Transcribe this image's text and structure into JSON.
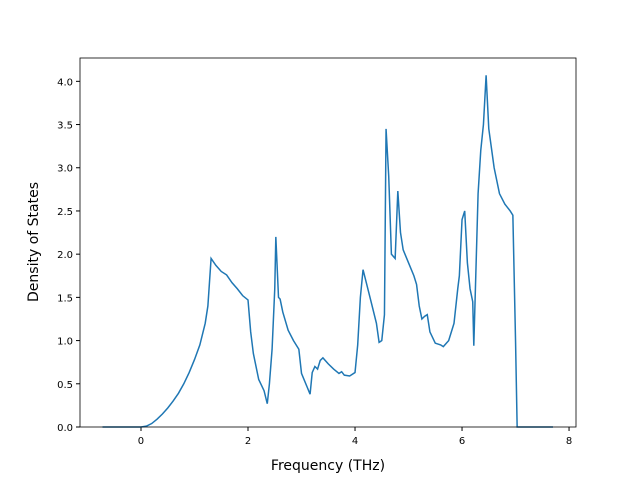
{
  "chart_data": {
    "type": "line",
    "xlabel": "Frequency (THz)",
    "ylabel": "Density of States",
    "xlim": [
      -1.14,
      8.13
    ],
    "ylim": [
      0,
      4.27
    ],
    "xticks": [
      0,
      2,
      4,
      6,
      8
    ],
    "yticks": [
      {
        "value": 0,
        "label": "0.0"
      },
      {
        "value": 0.5,
        "label": "0.5"
      },
      {
        "value": 1,
        "label": "1.0"
      },
      {
        "value": 1.5,
        "label": "1.5"
      },
      {
        "value": 2,
        "label": "2.0"
      },
      {
        "value": 2.5,
        "label": "2.5"
      },
      {
        "value": 3,
        "label": "3.0"
      },
      {
        "value": 3.5,
        "label": "3.5"
      },
      {
        "value": 4,
        "label": "4.0"
      }
    ],
    "color": "#1f77b4",
    "x": [
      -0.72,
      0,
      0.1,
      0.2,
      0.3,
      0.4,
      0.5,
      0.6,
      0.7,
      0.8,
      0.9,
      1.0,
      1.1,
      1.2,
      1.25,
      1.31,
      1.4,
      1.5,
      1.6,
      1.7,
      1.8,
      1.9,
      2.0,
      2.05,
      2.1,
      2.2,
      2.3,
      2.36,
      2.4,
      2.45,
      2.5,
      2.52,
      2.57,
      2.6,
      2.65,
      2.75,
      2.85,
      2.95,
      3.0,
      3.1,
      3.16,
      3.2,
      3.25,
      3.3,
      3.35,
      3.4,
      3.5,
      3.6,
      3.7,
      3.75,
      3.8,
      3.9,
      4.0,
      4.05,
      4.1,
      4.15,
      4.3,
      4.4,
      4.45,
      4.5,
      4.55,
      4.58,
      4.63,
      4.68,
      4.75,
      4.8,
      4.85,
      4.9,
      5.0,
      5.1,
      5.15,
      5.2,
      5.25,
      5.3,
      5.35,
      5.4,
      5.5,
      5.6,
      5.65,
      5.75,
      5.85,
      5.92,
      5.95,
      6.0,
      6.05,
      6.1,
      6.15,
      6.2,
      6.22,
      6.3,
      6.35,
      6.4,
      6.45,
      6.5,
      6.6,
      6.7,
      6.8,
      6.9,
      6.95,
      7.0,
      7.03,
      7.7
    ],
    "values": [
      0,
      0,
      0.01,
      0.04,
      0.09,
      0.15,
      0.22,
      0.3,
      0.39,
      0.5,
      0.63,
      0.78,
      0.95,
      1.2,
      1.4,
      1.95,
      1.87,
      1.8,
      1.76,
      1.67,
      1.6,
      1.52,
      1.47,
      1.1,
      0.85,
      0.55,
      0.42,
      0.27,
      0.5,
      0.9,
      1.6,
      2.2,
      1.5,
      1.48,
      1.33,
      1.12,
      1.0,
      0.9,
      0.62,
      0.47,
      0.38,
      0.63,
      0.7,
      0.67,
      0.77,
      0.8,
      0.73,
      0.67,
      0.62,
      0.64,
      0.6,
      0.59,
      0.63,
      0.95,
      1.5,
      1.82,
      1.45,
      1.2,
      0.98,
      1.0,
      1.3,
      3.45,
      2.9,
      2.0,
      1.95,
      2.73,
      2.25,
      2.05,
      1.9,
      1.75,
      1.65,
      1.4,
      1.25,
      1.28,
      1.3,
      1.1,
      0.97,
      0.95,
      0.93,
      1.0,
      1.2,
      1.6,
      1.75,
      2.4,
      2.5,
      1.9,
      1.6,
      1.45,
      0.94,
      2.7,
      3.2,
      3.5,
      4.07,
      3.45,
      3.0,
      2.7,
      2.58,
      2.5,
      2.45,
      1.0,
      0,
      0
    ]
  }
}
